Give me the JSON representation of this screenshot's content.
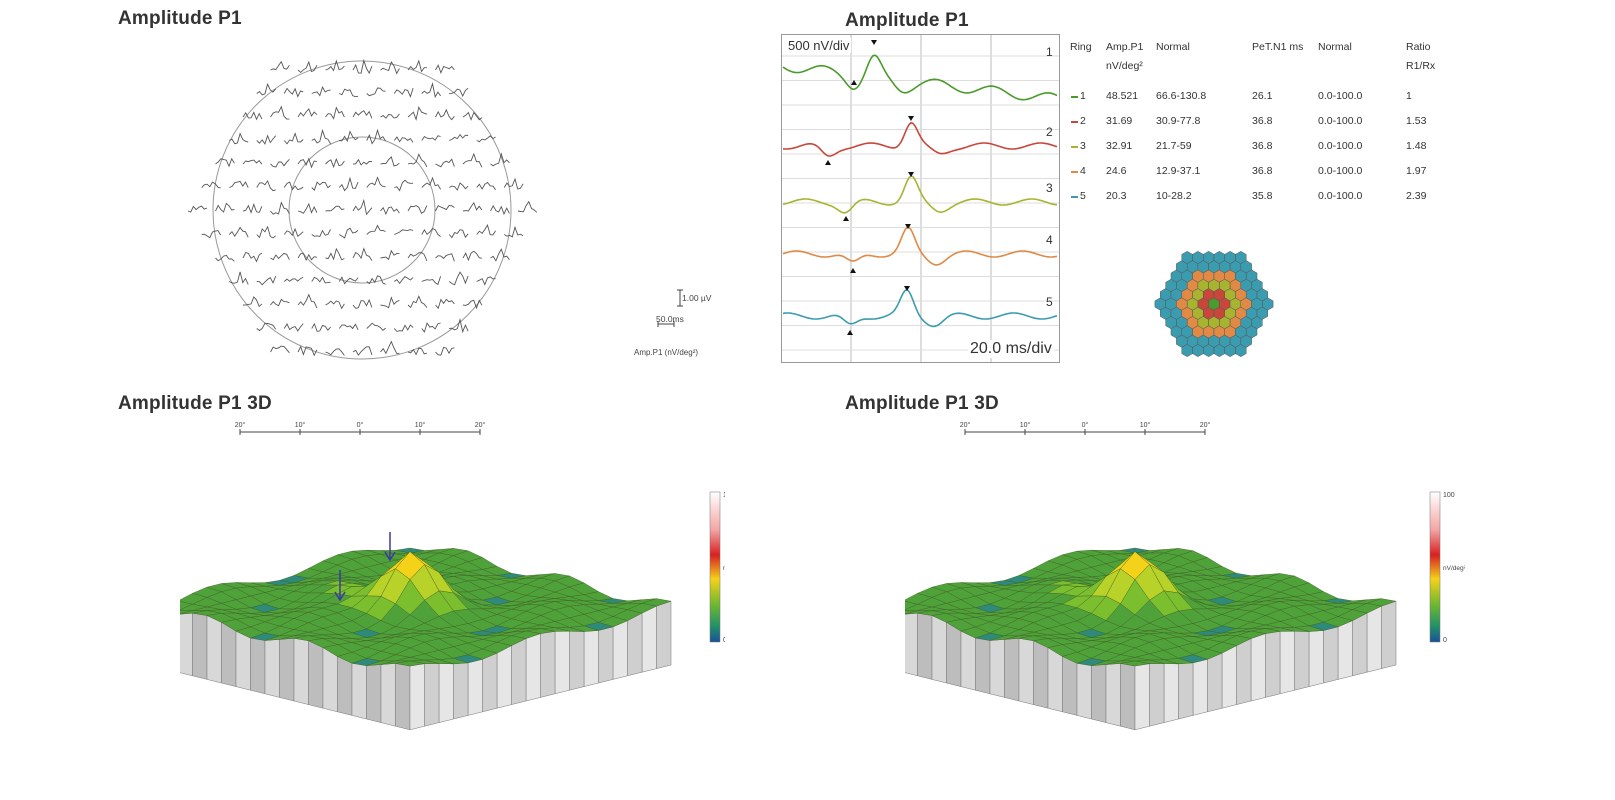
{
  "panels": {
    "top_left_title": "Amplitude P1",
    "top_right_title": "Amplitude P1",
    "bottom_left_title": "Amplitude P1 3D",
    "bottom_right_title": "Amplitude P1 3D"
  },
  "trace_array_scale": {
    "amplitude": "1.00 µV",
    "time": "50.0ms",
    "units": "Amp.P1 (nV/deg²)"
  },
  "colors": {
    "ring1": "#4a9a2c",
    "ring2": "#c9463a",
    "ring3": "#a8b430",
    "ring4": "#e08a45",
    "ring5": "#3b9cb0",
    "grid": "#bbbbbb",
    "arrow": "#3a3aa0"
  },
  "chart_data": [
    {
      "type": "line",
      "title": "Amplitude P1",
      "xlabel": "20.0 ms/div",
      "ylabel": "500 nV/div",
      "series": [
        {
          "name": "1",
          "color": "#4a9a2c"
        },
        {
          "name": "2",
          "color": "#c9463a"
        },
        {
          "name": "3",
          "color": "#a8b430"
        },
        {
          "name": "4",
          "color": "#e08a45"
        },
        {
          "name": "5",
          "color": "#3b9cb0"
        }
      ],
      "grid": true
    },
    {
      "type": "table",
      "columns": [
        "Ring",
        "Amp.P1 nV/deg²",
        "Normal",
        "PeT.N1 ms",
        "Normal",
        "Ratio R1/Rx"
      ],
      "rows": [
        [
          "1",
          "48.521",
          "66.6-130.8",
          "26.1",
          "0.0-100.0",
          "1"
        ],
        [
          "2",
          "31.69",
          "30.9-77.8",
          "36.8",
          "0.0-100.0",
          "1.53"
        ],
        [
          "3",
          "32.91",
          "21.7-59",
          "36.8",
          "0.0-100.0",
          "1.48"
        ],
        [
          "4",
          "24.6",
          "12.9-37.1",
          "36.8",
          "0.0-100.0",
          "1.97"
        ],
        [
          "5",
          "20.3",
          "10-28.2",
          "35.8",
          "0.0-100.0",
          "2.39"
        ]
      ],
      "row_colors": [
        "#4a9a2c",
        "#c9463a",
        "#a8b430",
        "#e08a45",
        "#3b9cb0"
      ]
    },
    {
      "type": "heatmap",
      "title": "Amplitude P1 3D",
      "x_ticks": [
        "20°",
        "10°",
        "0°",
        "10°",
        "20°"
      ],
      "colorbar": {
        "max": "100",
        "mid": "nV/deg²",
        "min": "0"
      },
      "arrows": 2
    },
    {
      "type": "heatmap",
      "title": "Amplitude P1 3D",
      "x_ticks": [
        "20°",
        "10°",
        "0°",
        "10°",
        "20°"
      ],
      "colorbar": {
        "max": "100",
        "mid": "nV/deg²",
        "min": "0"
      },
      "arrows": 0
    }
  ]
}
